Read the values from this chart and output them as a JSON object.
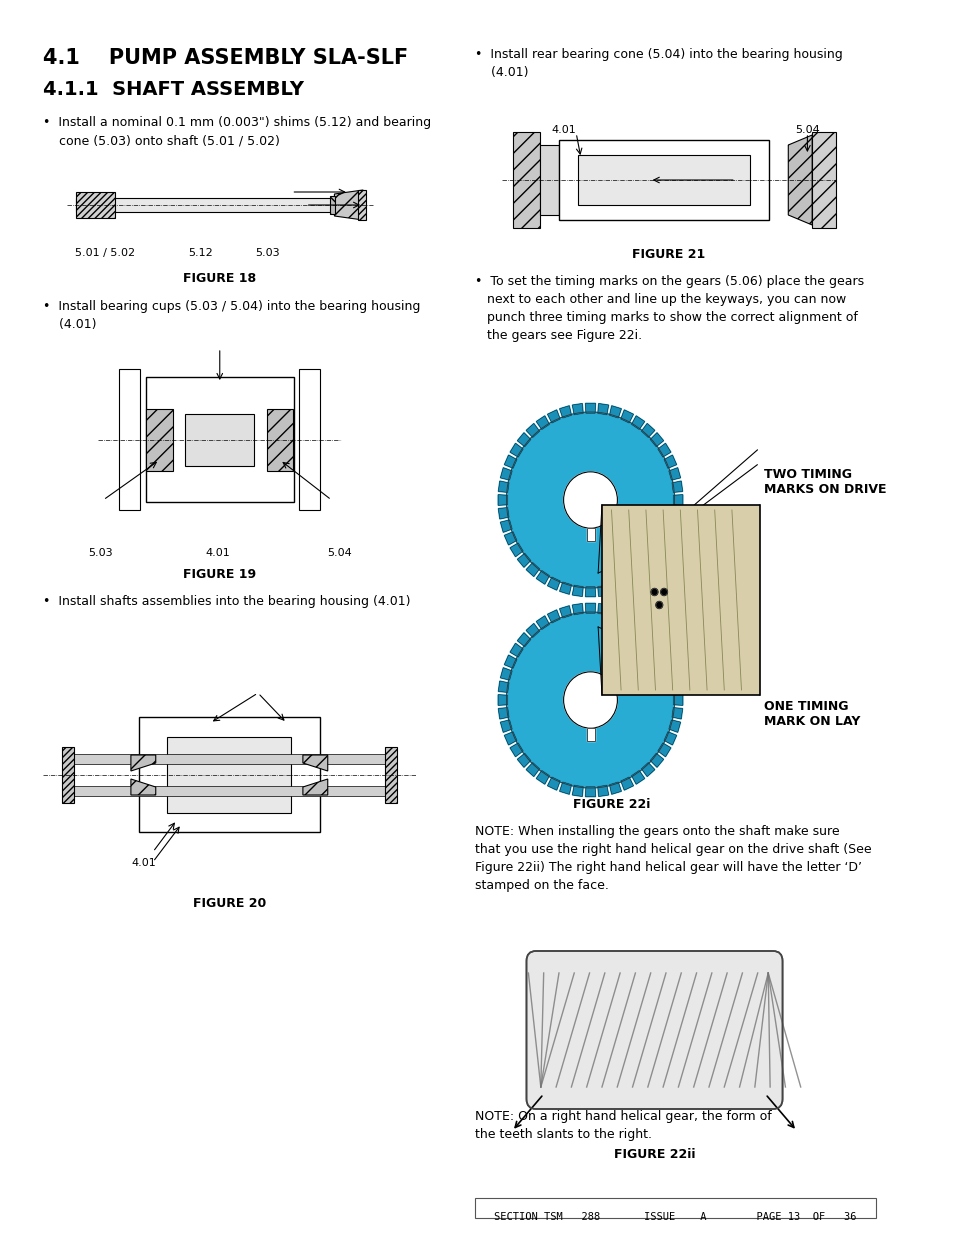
{
  "bg_color": "#ffffff",
  "title1": "4.1    PUMP ASSEMBLY SLA-SLF",
  "title2": "4.1.1  SHAFT ASSEMBLY",
  "bullet1": "•  Install a nominal 0.1 mm (0.003\") shims (5.12) and bearing\n    cone (5.03) onto shaft (5.01 / 5.02)",
  "fig18_label": "FIGURE 18",
  "fig18_labels": [
    "5.01 / 5.02",
    "5.12",
    "5.03"
  ],
  "bullet2_left": "•  Install bearing cups (5.03 / 5.04) into the bearing housing\n    (4.01)",
  "fig19_label": "FIGURE 19",
  "fig19_labels": [
    "5.03",
    "4.01",
    "5.04"
  ],
  "bullet3_left": "•  Install shafts assemblies into the bearing housing (4.01)",
  "fig20_label": "FIGURE 20",
  "fig20_label_401": "4.01",
  "bullet1_right": "•  Install rear bearing cone (5.04) into the bearing housing\n    (4.01)",
  "fig21_label": "FIGURE 21",
  "fig21_label_401": "4.01",
  "fig21_label_504": "5.04",
  "timing_text1": "•  To set the timing marks on the gears (5.06) place the gears\n   next to each other and line up the keyways, you can now\n   punch three timing marks to show the correct alignment of\n   the gears see Figure 22i.",
  "fig22i_label": "FIGURE 22i",
  "fig22i_ann1": "TWO TIMING\nMARKS ON DRIVE",
  "fig22i_ann2": "ONE TIMING\nMARK ON LAY",
  "note_text": "NOTE: When installing the gears onto the shaft make sure\nthat you use the right hand helical gear on the drive shaft (See\nFigure 22ii) The right hand helical gear will have the letter ‘D’\nstamped on the face.",
  "fig22ii_note": "NOTE: On a right hand helical gear, the form of\nthe teeth slants to the right.",
  "fig22ii_label": "FIGURE 22ii",
  "footer_text": "SECTION TSM   288       ISSUE    A        PAGE 13  OF   36",
  "gear_color": "#29acd4",
  "gear_color2": "#1a8fb8"
}
